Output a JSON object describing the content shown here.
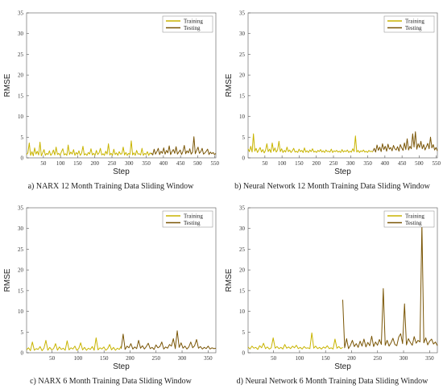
{
  "colors": {
    "training": "#c8b400",
    "testing": "#7a5606",
    "axis": "#555555"
  },
  "chart_data": [
    {
      "type": "line",
      "panel": "a",
      "caption": "a) NARX 12 Month Training Data Sliding Window",
      "xlabel": "Step",
      "ylabel": "RMSE",
      "xlim": [
        1,
        553
      ],
      "ylim": [
        0,
        35
      ],
      "xticks": [
        50,
        100,
        150,
        200,
        250,
        300,
        350,
        400,
        450,
        500,
        550
      ],
      "yticks": [
        0,
        5,
        10,
        15,
        20,
        25,
        30,
        35
      ],
      "legend_position": "top-right",
      "series": [
        {
          "name": "Training",
          "x_range": [
            1,
            365
          ],
          "values": [
            0.8,
            1.2,
            3.6,
            0.6,
            1.5,
            0.5,
            2.4,
            0.9,
            1.6,
            0.7,
            3.8,
            0.5,
            1.2,
            2.0,
            0.6,
            1.1,
            0.8,
            1.7,
            0.6,
            1.0,
            1.9,
            0.7,
            2.6,
            0.8,
            1.1,
            0.6,
            1.5,
            2.2,
            0.7,
            1.0,
            0.6,
            3.1,
            0.8,
            1.4,
            0.9,
            2.0,
            0.6,
            1.3,
            0.8,
            1.7,
            0.6,
            1.1,
            2.8,
            0.7,
            1.0,
            0.6,
            1.3,
            0.9,
            2.2,
            0.7,
            1.1,
            0.6,
            1.8,
            0.8,
            1.2,
            2.3,
            0.7,
            1.0,
            0.6,
            1.6,
            0.9,
            3.4,
            0.7,
            1.1,
            0.6,
            2.1,
            0.8,
            1.2,
            0.6,
            1.5,
            0.9,
            1.0,
            2.6,
            0.7,
            1.3,
            0.6,
            1.1,
            0.8,
            4.1,
            0.7,
            1.2,
            0.6,
            1.8,
            0.9,
            1.0,
            0.7,
            2.3,
            0.6,
            1.1,
            0.8,
            1.5,
            0.6,
            1.2,
            0.9
          ]
        },
        {
          "name": "Testing",
          "x_range": [
            365,
            553
          ],
          "values": [
            1.2,
            0.7,
            2.1,
            0.9,
            1.5,
            2.3,
            0.8,
            1.6,
            1.1,
            2.4,
            0.9,
            1.8,
            1.2,
            2.9,
            0.8,
            1.5,
            2.0,
            1.1,
            2.7,
            0.9,
            1.4,
            1.9,
            0.8,
            1.6,
            3.0,
            1.0,
            1.7,
            1.2,
            2.2,
            0.9,
            1.4,
            5.1,
            1.0,
            1.8,
            2.6,
            1.1,
            1.5,
            2.3,
            0.9,
            1.2,
            1.6,
            2.1,
            0.8,
            1.4,
            1.0,
            1.3,
            0.8,
            1.1
          ]
        }
      ]
    },
    {
      "type": "line",
      "panel": "b",
      "caption": "b) Neural Network 12 Month Training Data Sliding Window",
      "xlabel": "Step",
      "ylabel": "RMSE",
      "xlim": [
        1,
        553
      ],
      "ylim": [
        0,
        35
      ],
      "xticks": [
        50,
        100,
        150,
        200,
        250,
        300,
        350,
        400,
        450,
        500,
        550
      ],
      "yticks": [
        0,
        5,
        10,
        15,
        20,
        25,
        30,
        35
      ],
      "legend_position": "top-right",
      "series": [
        {
          "name": "Training",
          "x_range": [
            1,
            365
          ],
          "values": [
            2.2,
            1.5,
            2.8,
            1.4,
            5.8,
            1.6,
            2.3,
            1.3,
            1.9,
            2.5,
            1.4,
            2.0,
            1.2,
            1.8,
            3.4,
            1.5,
            2.1,
            1.3,
            3.6,
            1.6,
            2.4,
            1.4,
            1.9,
            4.0,
            1.5,
            2.2,
            1.3,
            1.8,
            1.4,
            2.6,
            1.5,
            1.9,
            1.3,
            1.7,
            2.3,
            1.4,
            1.6,
            1.3,
            2.1,
            1.5,
            1.8,
            1.3,
            2.4,
            1.4,
            1.7,
            1.3,
            1.9,
            1.5,
            2.2,
            1.4,
            1.6,
            1.3,
            1.8,
            1.5,
            2.0,
            1.4,
            1.7,
            1.3,
            1.9,
            1.5,
            1.6,
            1.4,
            2.1,
            1.3,
            1.7,
            1.5,
            1.8,
            1.4,
            1.6,
            1.3,
            2.0,
            1.4,
            1.7,
            1.5,
            1.9,
            1.3,
            1.6,
            1.4,
            2.2,
            1.5,
            5.3,
            1.4,
            1.8,
            1.3,
            1.7,
            1.5,
            1.9,
            1.4,
            1.6,
            1.3,
            1.8,
            1.5,
            1.6,
            1.4
          ]
        },
        {
          "name": "Testing",
          "x_range": [
            365,
            553
          ],
          "values": [
            1.6,
            2.3,
            1.4,
            3.1,
            1.8,
            2.6,
            1.5,
            3.4,
            2.0,
            2.8,
            1.6,
            3.3,
            2.1,
            2.5,
            1.7,
            3.0,
            2.2,
            1.9,
            2.7,
            1.6,
            3.2,
            2.4,
            1.8,
            3.6,
            2.0,
            4.6,
            1.9,
            2.8,
            2.2,
            5.8,
            2.6,
            6.3,
            2.1,
            3.4,
            2.5,
            4.0,
            2.2,
            3.2,
            1.9,
            2.7,
            3.5,
            2.2,
            5.0,
            2.4,
            3.2,
            1.9,
            2.5,
            1.7
          ]
        }
      ]
    },
    {
      "type": "line",
      "panel": "c",
      "caption": "c) NARX 6 Month Training Data Sliding Window",
      "xlabel": "Step",
      "ylabel": "RMSE",
      "xlim": [
        1,
        365
      ],
      "ylim": [
        0,
        35
      ],
      "xticks": [
        50,
        100,
        150,
        200,
        250,
        300,
        350
      ],
      "yticks": [
        0,
        5,
        10,
        15,
        20,
        25,
        30,
        35
      ],
      "legend_position": "top-right",
      "series": [
        {
          "name": "Training",
          "x_range": [
            1,
            183
          ],
          "values": [
            0.7,
            1.2,
            0.5,
            2.6,
            0.6,
            1.0,
            0.8,
            1.5,
            0.5,
            1.1,
            3.0,
            0.6,
            1.3,
            0.7,
            1.0,
            2.2,
            0.6,
            1.4,
            0.8,
            1.1,
            0.6,
            2.9,
            0.7,
            1.2,
            0.9,
            1.6,
            0.6,
            1.0,
            2.4,
            0.7,
            1.3,
            0.6,
            1.1,
            0.8,
            1.5,
            0.6,
            3.6,
            0.7,
            1.2,
            0.9,
            1.4,
            0.6,
            1.0,
            2.0,
            0.7,
            1.3,
            0.6,
            1.1,
            0.8,
            1.6
          ]
        },
        {
          "name": "Testing",
          "x_range": [
            183,
            365
          ],
          "values": [
            1.0,
            4.5,
            0.8,
            1.6,
            1.2,
            2.2,
            0.9,
            1.4,
            1.0,
            3.0,
            1.1,
            1.7,
            0.9,
            1.5,
            2.3,
            1.0,
            1.3,
            0.8,
            1.9,
            1.2,
            1.5,
            2.6,
            0.9,
            1.4,
            1.1,
            2.0,
            1.6,
            3.4,
            1.0,
            5.3,
            1.3,
            2.4,
            1.1,
            1.6,
            0.9,
            1.4,
            2.6,
            1.2,
            1.7,
            3.2,
            1.1,
            1.5,
            0.9,
            1.3,
            1.0,
            1.6,
            0.9,
            1.2,
            1.0,
            1.1
          ]
        }
      ]
    },
    {
      "type": "line",
      "panel": "d",
      "caption": "d) Neural Network 6 Month Training Data Sliding Window",
      "xlabel": "Step",
      "ylabel": "RMSE",
      "xlim": [
        1,
        365
      ],
      "ylim": [
        0,
        35
      ],
      "xticks": [
        50,
        100,
        150,
        200,
        250,
        300,
        350
      ],
      "yticks": [
        0,
        5,
        10,
        15,
        20,
        25,
        30,
        35
      ],
      "legend_position": "top-right",
      "series": [
        {
          "name": "Training",
          "x_range": [
            1,
            183
          ],
          "values": [
            1.4,
            0.9,
            1.6,
            1.1,
            1.3,
            0.8,
            1.7,
            1.2,
            2.3,
            1.0,
            1.4,
            0.9,
            1.2,
            3.6,
            1.1,
            1.5,
            1.0,
            1.3,
            0.9,
            2.0,
            1.1,
            1.4,
            1.0,
            1.6,
            1.2,
            1.8,
            1.0,
            1.3,
            0.9,
            1.5,
            1.1,
            1.2,
            1.0,
            4.8,
            1.1,
            1.6,
            1.0,
            1.3,
            0.9,
            1.4,
            1.1,
            1.7,
            1.0,
            1.2,
            0.9,
            3.3,
            1.1,
            1.5,
            1.0,
            1.3
          ]
        },
        {
          "name": "Testing",
          "x_range": [
            183,
            365
          ],
          "values": [
            12.8,
            1.2,
            3.4,
            1.0,
            1.8,
            3.0,
            1.5,
            2.2,
            1.3,
            2.8,
            1.6,
            3.3,
            1.4,
            2.5,
            1.7,
            4.0,
            1.5,
            2.6,
            1.8,
            3.2,
            2.0,
            15.5,
            1.8,
            3.0,
            1.6,
            2.4,
            3.5,
            2.0,
            1.7,
            3.8,
            4.6,
            2.2,
            11.8,
            1.9,
            3.4,
            2.5,
            1.8,
            3.9,
            2.3,
            3.0,
            2.6,
            31.0,
            2.4,
            3.6,
            1.9,
            2.8,
            3.3,
            2.1,
            2.6,
            1.7
          ]
        }
      ]
    }
  ]
}
